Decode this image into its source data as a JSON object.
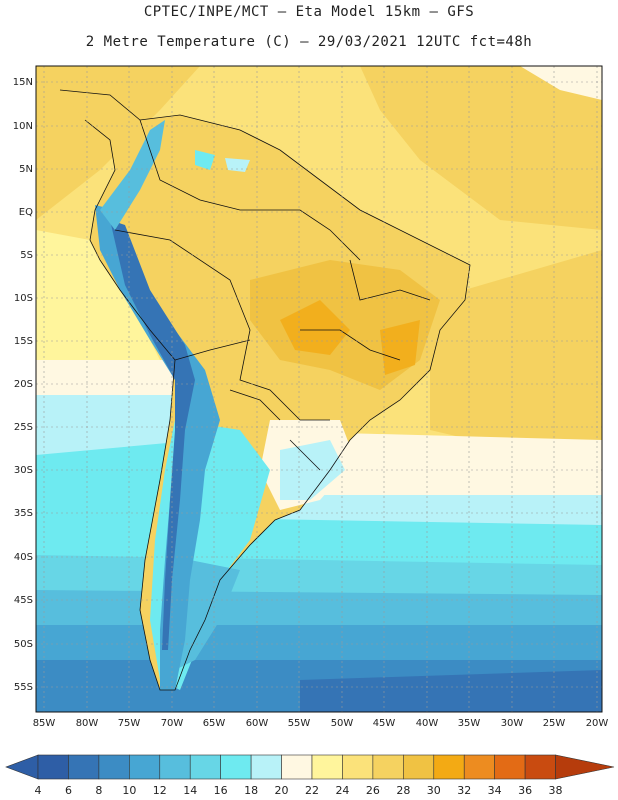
{
  "header": {
    "line1": "CPTEC/INPE/MCT –  Eta Model 15km – GFS",
    "line2": "2 Metre Temperature (C) – 29/03/2021 12UTC fct=48h"
  },
  "map": {
    "lat_labels": [
      "15N",
      "10N",
      "5N",
      "EQ",
      "5S",
      "10S",
      "15S",
      "20S",
      "25S",
      "30S",
      "35S",
      "40S",
      "45S",
      "50S",
      "55S"
    ],
    "lon_labels": [
      "85W",
      "80W",
      "75W",
      "70W",
      "65W",
      "60W",
      "55W",
      "50W",
      "45W",
      "40W",
      "35W",
      "30W",
      "25W",
      "20W"
    ]
  },
  "colorbar": {
    "labels": [
      "4",
      "6",
      "8",
      "10",
      "12",
      "14",
      "16",
      "18",
      "20",
      "22",
      "24",
      "26",
      "28",
      "30",
      "32",
      "34",
      "36",
      "38"
    ],
    "colors": [
      "#2e5ea6",
      "#3574b5",
      "#3c8cc4",
      "#47a6d3",
      "#57bedd",
      "#67d6e6",
      "#6eeaf0",
      "#b8f2f8",
      "#fff8e2",
      "#fff59c",
      "#fbe27a",
      "#f5d260",
      "#f0c243",
      "#f3aa14",
      "#ed8c20",
      "#e36b15",
      "#c94b10",
      "#b63c0c"
    ]
  }
}
